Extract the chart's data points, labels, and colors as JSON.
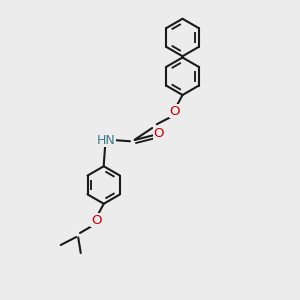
{
  "bg": "#ececec",
  "bond_color": "#1a1a1a",
  "o_color": "#cc0000",
  "n_color": "#3a7a8a",
  "lw": 1.5,
  "ring_r": 0.75,
  "figsize": [
    3.0,
    3.0
  ],
  "dpi": 100,
  "xlim": [
    -1.5,
    8.5
  ],
  "ylim": [
    -1.5,
    10.5
  ]
}
